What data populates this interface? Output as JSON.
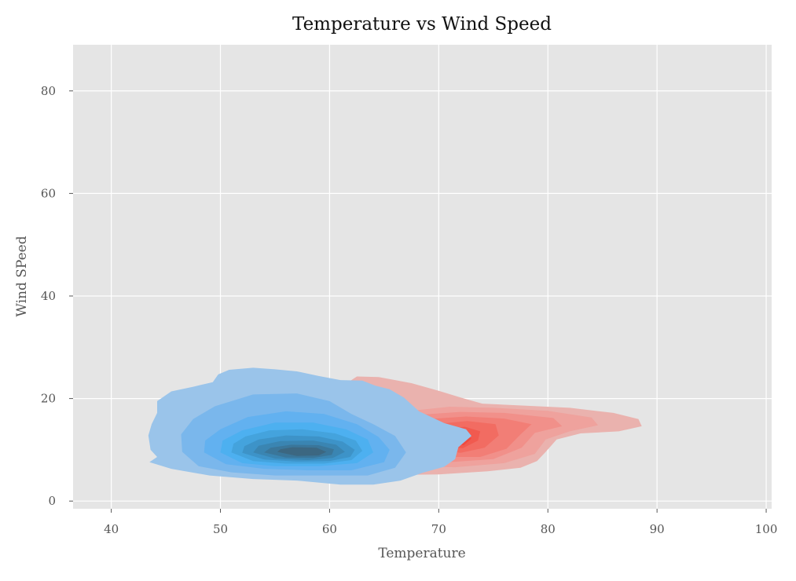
{
  "chart_data": {
    "type": "kde-contour",
    "title": "Temperature vs Wind Speed",
    "xlabel": "Temperature",
    "ylabel": "Wind SPeed",
    "xlim": [
      36.5,
      100.5
    ],
    "ylim": [
      -1.5,
      89
    ],
    "x_ticks": [
      40,
      50,
      60,
      70,
      80,
      90,
      100
    ],
    "y_ticks": [
      0,
      20,
      40,
      60,
      80
    ],
    "grid": true,
    "background": "#e5e5e5",
    "legend": null,
    "series": [
      {
        "color": "#e8665a",
        "peak": {
          "x": 71.5,
          "y": 11.2
        },
        "levels": [
          {
            "fill": "#eab2ae",
            "points": [
              [
                64.5,
                24.2
              ],
              [
                67.5,
                23.0
              ],
              [
                70.0,
                21.5
              ],
              [
                72.0,
                20.2
              ],
              [
                74.0,
                19.0
              ],
              [
                78.0,
                18.6
              ],
              [
                82.0,
                18.2
              ],
              [
                86.0,
                17.2
              ],
              [
                88.3,
                16.0
              ],
              [
                88.6,
                14.6
              ],
              [
                86.5,
                13.6
              ],
              [
                83.0,
                13.2
              ],
              [
                80.8,
                12.0
              ],
              [
                79.8,
                9.6
              ],
              [
                79.0,
                7.8
              ],
              [
                77.5,
                6.5
              ],
              [
                74.5,
                5.8
              ],
              [
                70.0,
                5.2
              ],
              [
                66.0,
                5.1
              ],
              [
                62.0,
                5.6
              ],
              [
                60.0,
                8.0
              ],
              [
                60.0,
                15.0
              ],
              [
                60.5,
                21.5
              ],
              [
                62.5,
                24.3
              ]
            ]
          },
          {
            "fill": "#efa29d",
            "points": [
              [
                67.0,
                17.5
              ],
              [
                71.0,
                18.4
              ],
              [
                75.0,
                18.2
              ],
              [
                80.0,
                17.6
              ],
              [
                84.0,
                16.3
              ],
              [
                84.6,
                14.8
              ],
              [
                82.0,
                13.6
              ],
              [
                79.8,
                12.0
              ],
              [
                78.8,
                9.2
              ],
              [
                76.0,
                7.4
              ],
              [
                71.5,
                6.6
              ],
              [
                67.0,
                6.8
              ],
              [
                65.5,
                10.0
              ],
              [
                65.8,
                15.0
              ]
            ]
          },
          {
            "fill": "#f1908a",
            "points": [
              [
                68.0,
                16.8
              ],
              [
                72.0,
                17.4
              ],
              [
                76.0,
                17.2
              ],
              [
                80.5,
                16.2
              ],
              [
                81.3,
                14.6
              ],
              [
                78.8,
                13.3
              ],
              [
                77.6,
                10.4
              ],
              [
                75.0,
                8.2
              ],
              [
                71.0,
                7.6
              ],
              [
                68.5,
                8.4
              ],
              [
                67.5,
                12.0
              ]
            ]
          },
          {
            "fill": "#f27e76",
            "points": [
              [
                69.0,
                16.0
              ],
              [
                72.5,
                16.5
              ],
              [
                76.0,
                16.1
              ],
              [
                78.5,
                15.0
              ],
              [
                77.5,
                13.0
              ],
              [
                76.2,
                10.2
              ],
              [
                73.8,
                8.6
              ],
              [
                70.8,
                8.6
              ],
              [
                69.2,
                10.5
              ],
              [
                68.6,
                13.5
              ]
            ]
          },
          {
            "fill": "#f26c62",
            "points": [
              [
                69.6,
                15.0
              ],
              [
                72.6,
                15.6
              ],
              [
                75.2,
                15.0
              ],
              [
                75.5,
                12.8
              ],
              [
                74.2,
                10.4
              ],
              [
                72.0,
                9.4
              ],
              [
                70.0,
                10.0
              ],
              [
                69.3,
                12.5
              ]
            ]
          },
          {
            "fill": "#f15a4f",
            "points": [
              [
                70.2,
                14.0
              ],
              [
                72.4,
                14.5
              ],
              [
                73.8,
                13.6
              ],
              [
                73.6,
                11.8
              ],
              [
                72.2,
                10.3
              ],
              [
                70.6,
                10.6
              ],
              [
                70.0,
                12.3
              ]
            ]
          },
          {
            "fill": "#ef4a3f",
            "points": [
              [
                70.6,
                13.0
              ],
              [
                72.2,
                13.3
              ],
              [
                73.0,
                12.2
              ],
              [
                72.3,
                10.9
              ],
              [
                70.9,
                11.1
              ],
              [
                70.5,
                12.1
              ]
            ]
          }
        ]
      },
      {
        "color": "#4db0f0",
        "peak": {
          "x": 57.5,
          "y": 9.5
        },
        "levels": [
          {
            "fill": "#9ac4ea",
            "points": [
              [
                43.6,
                10.0
              ],
              [
                44.2,
                8.6
              ],
              [
                43.5,
                7.6
              ],
              [
                45.5,
                6.3
              ],
              [
                49.0,
                5.0
              ],
              [
                53.0,
                4.3
              ],
              [
                57.0,
                4.0
              ],
              [
                61.0,
                3.2
              ],
              [
                64.0,
                3.2
              ],
              [
                66.5,
                4.0
              ],
              [
                68.5,
                5.5
              ],
              [
                70.5,
                6.7
              ],
              [
                71.5,
                8.2
              ],
              [
                71.8,
                10.5
              ],
              [
                73.0,
                12.7
              ],
              [
                72.5,
                14.0
              ],
              [
                70.5,
                15.2
              ],
              [
                68.2,
                17.5
              ],
              [
                66.8,
                20.2
              ],
              [
                65.5,
                21.8
              ],
              [
                64.2,
                22.5
              ],
              [
                63.0,
                23.5
              ],
              [
                61.0,
                23.6
              ],
              [
                59.0,
                24.4
              ],
              [
                57.0,
                25.3
              ],
              [
                55.0,
                25.7
              ],
              [
                53.0,
                26.0
              ],
              [
                50.8,
                25.6
              ],
              [
                49.8,
                24.7
              ],
              [
                49.3,
                23.2
              ],
              [
                47.5,
                22.3
              ],
              [
                45.5,
                21.4
              ],
              [
                44.2,
                19.5
              ],
              [
                44.2,
                17.2
              ],
              [
                43.7,
                15.0
              ],
              [
                43.4,
                12.8
              ]
            ]
          },
          {
            "fill": "#7ab7ec",
            "points": [
              [
                46.5,
                9.6
              ],
              [
                48.0,
                6.8
              ],
              [
                51.0,
                5.6
              ],
              [
                55.0,
                5.0
              ],
              [
                60.0,
                5.0
              ],
              [
                63.5,
                5.0
              ],
              [
                66.0,
                6.5
              ],
              [
                67.0,
                9.5
              ],
              [
                66.0,
                12.7
              ],
              [
                64.0,
                15.0
              ],
              [
                62.0,
                17.0
              ],
              [
                60.0,
                19.5
              ],
              [
                57.0,
                21.0
              ],
              [
                53.0,
                20.8
              ],
              [
                49.5,
                18.5
              ],
              [
                47.5,
                16.0
              ],
              [
                46.4,
                13.0
              ]
            ]
          },
          {
            "fill": "#62b1f0",
            "points": [
              [
                48.5,
                9.5
              ],
              [
                50.5,
                7.2
              ],
              [
                54.0,
                6.3
              ],
              [
                58.0,
                6.0
              ],
              [
                62.0,
                6.0
              ],
              [
                65.0,
                7.6
              ],
              [
                65.5,
                10.0
              ],
              [
                64.5,
                12.5
              ],
              [
                62.5,
                15.0
              ],
              [
                59.5,
                17.0
              ],
              [
                56.0,
                17.5
              ],
              [
                52.5,
                16.4
              ],
              [
                50.0,
                14.0
              ],
              [
                48.6,
                11.8
              ]
            ]
          },
          {
            "fill": "#4db0f0",
            "points": [
              [
                50.0,
                9.5
              ],
              [
                52.0,
                7.4
              ],
              [
                55.0,
                6.8
              ],
              [
                59.0,
                6.8
              ],
              [
                62.5,
                7.4
              ],
              [
                64.0,
                9.5
              ],
              [
                63.5,
                12.0
              ],
              [
                61.5,
                14.0
              ],
              [
                58.5,
                15.3
              ],
              [
                55.0,
                15.3
              ],
              [
                52.0,
                13.8
              ],
              [
                50.2,
                11.8
              ]
            ]
          },
          {
            "fill": "#44a3dd",
            "points": [
              [
                51.0,
                9.5
              ],
              [
                53.0,
                7.8
              ],
              [
                56.0,
                7.3
              ],
              [
                59.5,
                7.3
              ],
              [
                62.0,
                8.0
              ],
              [
                63.0,
                9.8
              ],
              [
                62.4,
                11.8
              ],
              [
                60.5,
                13.2
              ],
              [
                57.5,
                14.0
              ],
              [
                54.5,
                13.8
              ],
              [
                52.3,
                12.6
              ],
              [
                51.2,
                11.2
              ]
            ]
          },
          {
            "fill": "#3d93c8",
            "points": [
              [
                52.0,
                9.4
              ],
              [
                54.0,
                8.1
              ],
              [
                57.0,
                7.7
              ],
              [
                60.0,
                7.8
              ],
              [
                61.9,
                8.6
              ],
              [
                62.3,
                10.0
              ],
              [
                61.2,
                11.6
              ],
              [
                59.0,
                12.6
              ],
              [
                56.0,
                12.8
              ],
              [
                53.5,
                12.0
              ],
              [
                52.2,
                10.7
              ]
            ]
          },
          {
            "fill": "#3a85b2",
            "points": [
              [
                53.0,
                9.5
              ],
              [
                55.0,
                8.3
              ],
              [
                58.0,
                8.0
              ],
              [
                60.3,
                8.4
              ],
              [
                61.4,
                9.6
              ],
              [
                60.6,
                11.0
              ],
              [
                58.5,
                11.8
              ],
              [
                55.5,
                11.7
              ],
              [
                53.5,
                10.8
              ]
            ]
          },
          {
            "fill": "#3a769a",
            "points": [
              [
                54.0,
                9.5
              ],
              [
                56.0,
                8.5
              ],
              [
                58.5,
                8.4
              ],
              [
                60.2,
                9.0
              ],
              [
                60.4,
                10.1
              ],
              [
                59.0,
                10.9
              ],
              [
                56.5,
                11.0
              ],
              [
                54.6,
                10.4
              ]
            ]
          },
          {
            "fill": "#3c6781",
            "points": [
              [
                55.2,
                9.6
              ],
              [
                57.0,
                8.8
              ],
              [
                59.0,
                8.9
              ],
              [
                59.7,
                9.6
              ],
              [
                58.8,
                10.4
              ],
              [
                56.6,
                10.5
              ],
              [
                55.5,
                10.1
              ]
            ]
          }
        ]
      }
    ]
  }
}
